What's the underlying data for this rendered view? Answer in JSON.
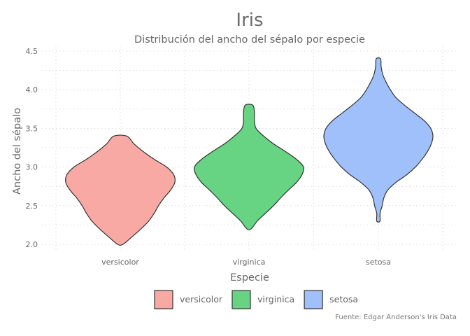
{
  "chart_data": {
    "type": "violin",
    "title": "Iris",
    "subtitle": "Distribución del ancho del sépalo por especie",
    "xlabel": "Especie",
    "ylabel": "Ancho del sépalo",
    "caption": "Fuente: Edgar Anderson's Iris Data",
    "ylim": [
      2.0,
      4.5
    ],
    "yticks": [
      "2.0",
      "2.5",
      "3.0",
      "3.5",
      "4.0",
      "4.5"
    ],
    "grid": true,
    "legend_position": "bottom",
    "categories": [
      "versicolor",
      "virginica",
      "setosa"
    ],
    "series": [
      {
        "name": "versicolor",
        "color": "#f8a9a4",
        "min": 2.0,
        "max": 3.4,
        "profile": [
          [
            2.0,
            0.05
          ],
          [
            2.1,
            0.22
          ],
          [
            2.2,
            0.38
          ],
          [
            2.3,
            0.52
          ],
          [
            2.4,
            0.62
          ],
          [
            2.5,
            0.7
          ],
          [
            2.6,
            0.8
          ],
          [
            2.7,
            0.92
          ],
          [
            2.8,
            1.0
          ],
          [
            2.9,
            0.98
          ],
          [
            3.0,
            0.85
          ],
          [
            3.1,
            0.62
          ],
          [
            3.2,
            0.42
          ],
          [
            3.3,
            0.25
          ],
          [
            3.4,
            0.12
          ]
        ]
      },
      {
        "name": "virginica",
        "color": "#66d482",
        "min": 2.2,
        "max": 3.8,
        "profile": [
          [
            2.2,
            0.04
          ],
          [
            2.3,
            0.15
          ],
          [
            2.4,
            0.3
          ],
          [
            2.5,
            0.45
          ],
          [
            2.6,
            0.58
          ],
          [
            2.7,
            0.72
          ],
          [
            2.8,
            0.87
          ],
          [
            2.9,
            0.97
          ],
          [
            3.0,
            1.0
          ],
          [
            3.1,
            0.87
          ],
          [
            3.2,
            0.67
          ],
          [
            3.3,
            0.45
          ],
          [
            3.4,
            0.27
          ],
          [
            3.5,
            0.13
          ],
          [
            3.6,
            0.1
          ],
          [
            3.7,
            0.1
          ],
          [
            3.8,
            0.07
          ]
        ]
      },
      {
        "name": "setosa",
        "color": "#9fc0fa",
        "min": 2.3,
        "max": 4.4,
        "profile": [
          [
            2.3,
            0.03
          ],
          [
            2.4,
            0.03
          ],
          [
            2.5,
            0.07
          ],
          [
            2.6,
            0.1
          ],
          [
            2.7,
            0.17
          ],
          [
            2.8,
            0.32
          ],
          [
            2.9,
            0.52
          ],
          [
            3.0,
            0.68
          ],
          [
            3.1,
            0.8
          ],
          [
            3.2,
            0.9
          ],
          [
            3.3,
            0.97
          ],
          [
            3.4,
            1.0
          ],
          [
            3.5,
            0.96
          ],
          [
            3.6,
            0.84
          ],
          [
            3.7,
            0.66
          ],
          [
            3.8,
            0.48
          ],
          [
            3.9,
            0.32
          ],
          [
            4.0,
            0.22
          ],
          [
            4.1,
            0.14
          ],
          [
            4.2,
            0.08
          ],
          [
            4.3,
            0.05
          ],
          [
            4.4,
            0.04
          ]
        ]
      }
    ]
  }
}
